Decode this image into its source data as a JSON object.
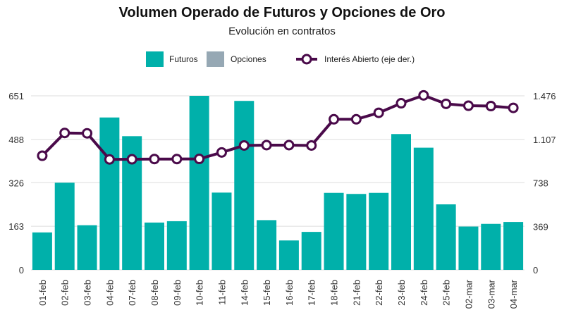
{
  "chart_data": {
    "type": "bar",
    "title": "Volumen Operado de Futuros y Opciones de Oro",
    "subtitle": "Evolución en contratos",
    "categories": [
      "01-feb",
      "02-feb",
      "03-feb",
      "04-feb",
      "07-feb",
      "08-feb",
      "09-feb",
      "10-feb",
      "11-feb",
      "14-feb",
      "15-feb",
      "16-feb",
      "17-feb",
      "18-feb",
      "21-feb",
      "22-feb",
      "23-feb",
      "24-feb",
      "25-feb",
      "02-mar",
      "03-mar",
      "04-mar"
    ],
    "series": [
      {
        "name": "Futuros",
        "type": "bar",
        "axis": "left",
        "color": "#00b0aa",
        "values": [
          140,
          326,
          167,
          570,
          500,
          177,
          182,
          651,
          289,
          632,
          186,
          110,
          142,
          288,
          284,
          288,
          508,
          457,
          245,
          162,
          172,
          179
        ]
      },
      {
        "name": "Opciones",
        "type": "bar",
        "axis": "left",
        "color": "#96a8b4",
        "values": [
          0,
          0,
          0,
          0,
          0,
          0,
          0,
          0,
          0,
          0,
          0,
          0,
          0,
          0,
          0,
          0,
          0,
          0,
          0,
          0,
          0,
          0
        ]
      },
      {
        "name": "Interés Abierto (eje der.)",
        "type": "line",
        "axis": "right",
        "color": "#4a0a4a",
        "values": [
          968,
          1161,
          1158,
          937,
          938,
          940,
          940,
          941,
          996,
          1055,
          1058,
          1058,
          1055,
          1277,
          1277,
          1332,
          1413,
          1480,
          1408,
          1392,
          1389,
          1374
        ]
      }
    ],
    "y_left": {
      "ticks": [
        0,
        163,
        326,
        488,
        651
      ],
      "tick_labels": [
        "0",
        "163",
        "326",
        "488",
        "651"
      ],
      "range": [
        0,
        651
      ]
    },
    "y_right": {
      "ticks": [
        0,
        369,
        738,
        1107,
        1476
      ],
      "tick_labels": [
        "0",
        "369",
        "738",
        "1.107",
        "1.476"
      ],
      "range": [
        0,
        1476
      ]
    },
    "grid": true,
    "legend_position": "top-center"
  }
}
